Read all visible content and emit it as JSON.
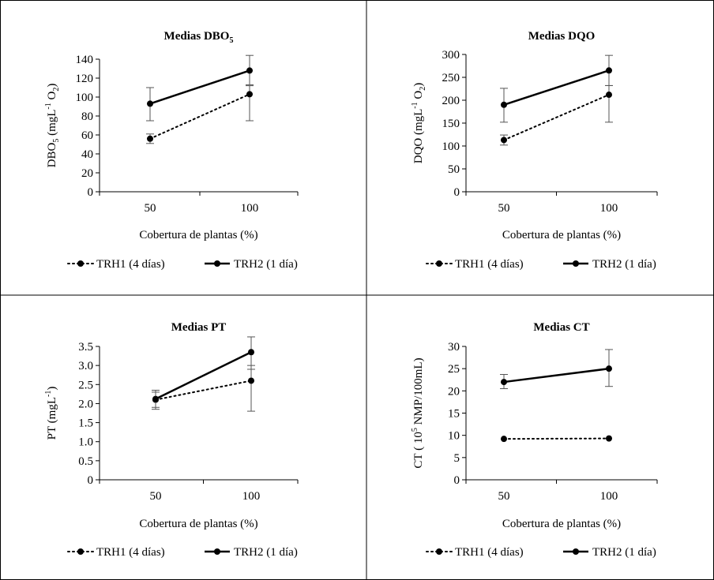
{
  "chart_data": [
    {
      "type": "line",
      "title": "Medias DBO",
      "title_sub": "5",
      "ylabel_parts": [
        "DBO",
        "5",
        " (mgL",
        "-1",
        " O",
        "2",
        ")"
      ],
      "xlabel": "Cobertura de plantas (%)",
      "categories": [
        "50",
        "100"
      ],
      "ylim": [
        0,
        140
      ],
      "yticks": [
        "0",
        "20",
        "40",
        "60",
        "80",
        "100",
        "120",
        "140"
      ],
      "series": [
        {
          "name": "TRH1 (4 días)",
          "style": "dotted",
          "values": [
            56,
            103
          ],
          "err_low": [
            51,
            75
          ],
          "err_high": [
            61,
            112
          ]
        },
        {
          "name": "TRH2 (1 día)",
          "style": "solid",
          "values": [
            93,
            128
          ],
          "err_low": [
            75,
            113
          ],
          "err_high": [
            110,
            144
          ]
        }
      ]
    },
    {
      "type": "line",
      "title": "Medias DQO",
      "title_sub": "",
      "ylabel_parts": [
        "DQO (mgL",
        "-1",
        " O",
        "2",
        ")"
      ],
      "xlabel": "Cobertura de plantas (%)",
      "categories": [
        "50",
        "100"
      ],
      "ylim": [
        0,
        300
      ],
      "yticks": [
        "0",
        "50",
        "100",
        "150",
        "200",
        "250",
        "300"
      ],
      "series": [
        {
          "name": "TRH1 (4 días)",
          "style": "dotted",
          "values": [
            113,
            212
          ],
          "err_low": [
            102,
            152
          ],
          "err_high": [
            124,
            232
          ]
        },
        {
          "name": "TRH2 (1 día)",
          "style": "solid",
          "values": [
            190,
            265
          ],
          "err_low": [
            152,
            232
          ],
          "err_high": [
            226,
            298
          ]
        }
      ]
    },
    {
      "type": "line",
      "title": "Medias PT",
      "title_sub": "",
      "ylabel_parts": [
        "PT (mgL",
        "-1",
        ")"
      ],
      "xlabel": "Cobertura de plantas (%)",
      "categories": [
        "50",
        "100"
      ],
      "ylim": [
        0,
        3.5
      ],
      "yticks": [
        "0",
        "0.5",
        "1.0",
        "1.5",
        "2.0",
        "2.5",
        "3.0",
        "3.5"
      ],
      "series": [
        {
          "name": "TRH1 (4 días)",
          "style": "dotted",
          "values": [
            2.1,
            2.6
          ],
          "err_low": [
            1.9,
            1.8
          ],
          "err_high": [
            2.3,
            3.0
          ]
        },
        {
          "name": "TRH2 (1 día)",
          "style": "solid",
          "values": [
            2.12,
            3.35
          ],
          "err_low": [
            1.85,
            2.9
          ],
          "err_high": [
            2.35,
            3.75
          ]
        }
      ]
    },
    {
      "type": "line",
      "title": "Medias CT",
      "title_sub": "",
      "ylabel_parts": [
        "CT ( 10",
        "5",
        " NMP/100mL)"
      ],
      "xlabel": "Cobertura de plantas (%)",
      "categories": [
        "50",
        "100"
      ],
      "ylim": [
        0,
        30
      ],
      "yticks": [
        "0",
        "5",
        "10",
        "15",
        "20",
        "25",
        "30"
      ],
      "series": [
        {
          "name": "TRH1 (4 días)",
          "style": "dotted",
          "values": [
            9.2,
            9.3
          ],
          "err_low": [
            9.2,
            9.3
          ],
          "err_high": [
            9.2,
            9.3
          ]
        },
        {
          "name": "TRH2 (1 día)",
          "style": "solid",
          "values": [
            22,
            25
          ],
          "err_low": [
            20.5,
            21
          ],
          "err_high": [
            23.7,
            29.3
          ]
        }
      ]
    }
  ]
}
